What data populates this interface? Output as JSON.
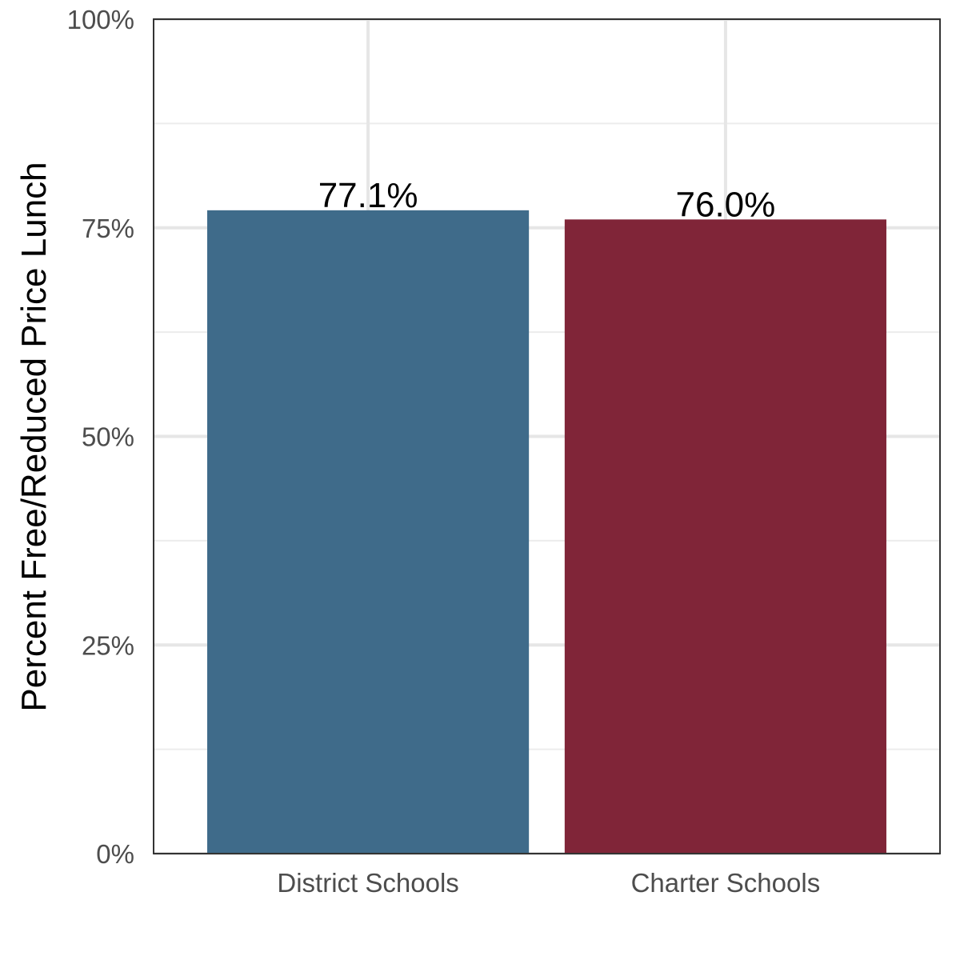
{
  "chart_data": {
    "type": "bar",
    "title": "",
    "xlabel": "",
    "ylabel": "Percent Free/Reduced Price Lunch",
    "categories": [
      "District Schools",
      "Charter Schools"
    ],
    "values": [
      0.771,
      0.76
    ],
    "data_labels": [
      "77.1%",
      "76.0%"
    ],
    "colors": [
      "#3f6b8a",
      "#802538"
    ],
    "ylim": [
      0,
      1
    ],
    "y_ticks": [
      {
        "value": 0,
        "label": "0%"
      },
      {
        "value": 0.25,
        "label": "25%"
      },
      {
        "value": 0.5,
        "label": "50%"
      },
      {
        "value": 0.75,
        "label": "75%"
      },
      {
        "value": 1,
        "label": "100%"
      }
    ],
    "grid": true,
    "legend": "none"
  }
}
